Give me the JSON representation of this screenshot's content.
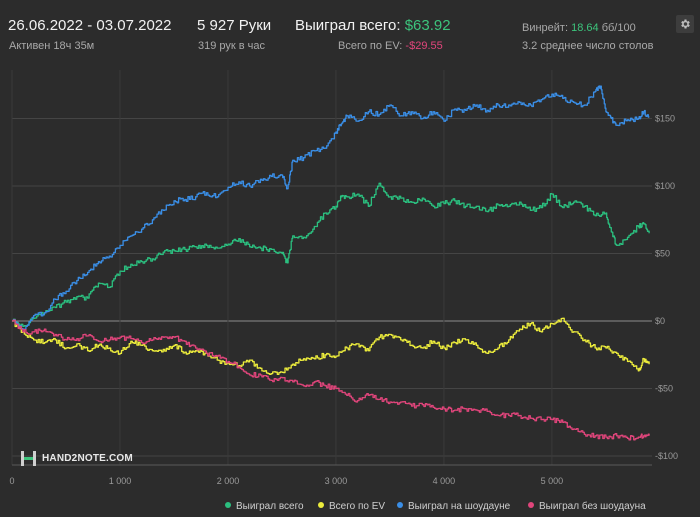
{
  "header": {
    "date_range": "26.06.2022 - 03.07.2022",
    "active": "Активен 18ч 35м",
    "hands": "5 927 Руки",
    "hands_per_hour": "319 рук в час",
    "won_label": "Выиграл всего:",
    "won_value": "$63.92",
    "ev_label": "Всего по EV:",
    "ev_value": "-$29.55",
    "winrate_label": "Винрейт:",
    "winrate_value": "18.64",
    "winrate_unit": "бб/100",
    "avg_tables": "3.2 среднее число столов"
  },
  "logo": {
    "text": "HAND2NOTE.COM"
  },
  "colors": {
    "background": "#2c2c2c",
    "won_total": "#2bbf7f",
    "ev_total": "#ecec3c",
    "showdown": "#3a8ee6",
    "non_showdown": "#e0457b"
  },
  "chart_data": {
    "type": "line",
    "xlim": [
      0,
      5927
    ],
    "ylim": [
      -100,
      175
    ],
    "x_ticks": [
      {
        "value": 0,
        "label": "0"
      },
      {
        "value": 1000,
        "label": "1 000"
      },
      {
        "value": 2000,
        "label": "2 000"
      },
      {
        "value": 3000,
        "label": "3 000"
      },
      {
        "value": 4000,
        "label": "4 000"
      },
      {
        "value": 5000,
        "label": "5 000"
      }
    ],
    "y_ticks": [
      {
        "value": 150,
        "label": "$150"
      },
      {
        "value": 100,
        "label": "$100"
      },
      {
        "value": 50,
        "label": "$50"
      },
      {
        "value": 0,
        "label": "$0"
      },
      {
        "value": -50,
        "label": "-$50"
      },
      {
        "value": -100,
        "label": "-$100"
      }
    ],
    "grid": true,
    "legend_position": "bottom",
    "series": [
      {
        "name": "Выиграл всего",
        "color": "#2bbf7f",
        "x": [
          0,
          100,
          200,
          300,
          400,
          500,
          600,
          700,
          800,
          900,
          1000,
          1100,
          1200,
          1300,
          1400,
          1500,
          1600,
          1700,
          1800,
          1900,
          2000,
          2100,
          2200,
          2300,
          2400,
          2500,
          2550,
          2600,
          2700,
          2800,
          2900,
          3000,
          3050,
          3100,
          3200,
          3300,
          3400,
          3500,
          3600,
          3700,
          3800,
          3900,
          4000,
          4100,
          4200,
          4300,
          4400,
          4500,
          4600,
          4700,
          4800,
          4900,
          5000,
          5100,
          5200,
          5300,
          5400,
          5500,
          5550,
          5600,
          5700,
          5800,
          5850,
          5900
        ],
        "y": [
          0,
          -4,
          2,
          6,
          10,
          14,
          18,
          17,
          28,
          25,
          37,
          42,
          44,
          46,
          51,
          52,
          53,
          55,
          56,
          54,
          57,
          61,
          55,
          54,
          53,
          50,
          43,
          63,
          62,
          70,
          80,
          85,
          92,
          92,
          94,
          85,
          102,
          92,
          91,
          88,
          91,
          85,
          87,
          89,
          85,
          85,
          81,
          86,
          85,
          88,
          82,
          84,
          94,
          84,
          88,
          85,
          78,
          80,
          66,
          56,
          62,
          70,
          72,
          65
        ]
      },
      {
        "name": "Всего по EV",
        "color": "#ecec3c",
        "x": [
          0,
          100,
          200,
          300,
          400,
          500,
          600,
          700,
          800,
          900,
          1000,
          1100,
          1200,
          1300,
          1400,
          1500,
          1600,
          1700,
          1800,
          1900,
          2000,
          2100,
          2200,
          2300,
          2400,
          2500,
          2600,
          2700,
          2800,
          2900,
          3000,
          3100,
          3200,
          3300,
          3400,
          3500,
          3600,
          3700,
          3800,
          3900,
          4000,
          4100,
          4200,
          4300,
          4400,
          4500,
          4600,
          4700,
          4800,
          4900,
          5000,
          5100,
          5200,
          5300,
          5400,
          5500,
          5600,
          5700,
          5800,
          5850,
          5900
        ],
        "y": [
          0,
          -8,
          -14,
          -16,
          -14,
          -20,
          -17,
          -22,
          -18,
          -20,
          -24,
          -15,
          -18,
          -22,
          -21,
          -18,
          -23,
          -22,
          -24,
          -29,
          -31,
          -33,
          -29,
          -35,
          -39,
          -38,
          -32,
          -28,
          -28,
          -25,
          -26,
          -20,
          -17,
          -22,
          -12,
          -10,
          -14,
          -18,
          -20,
          -15,
          -20,
          -16,
          -14,
          -18,
          -24,
          -20,
          -14,
          -6,
          -2,
          -8,
          -2,
          2,
          -8,
          -14,
          -20,
          -20,
          -24,
          -30,
          -37,
          -28,
          -32
        ]
      },
      {
        "name": "Выиграл на шоудауне",
        "color": "#3a8ee6",
        "x": [
          0,
          100,
          200,
          300,
          400,
          500,
          600,
          700,
          800,
          900,
          1000,
          1100,
          1200,
          1300,
          1400,
          1500,
          1600,
          1700,
          1800,
          1900,
          2000,
          2100,
          2200,
          2300,
          2400,
          2500,
          2550,
          2600,
          2700,
          2800,
          2900,
          3000,
          3050,
          3100,
          3200,
          3300,
          3400,
          3500,
          3600,
          3700,
          3800,
          3900,
          4000,
          4100,
          4200,
          4300,
          4400,
          4500,
          4600,
          4700,
          4800,
          4900,
          5000,
          5100,
          5200,
          5300,
          5400,
          5450,
          5500,
          5550,
          5600,
          5700,
          5800,
          5850,
          5900
        ],
        "y": [
          0,
          -6,
          4,
          6,
          16,
          22,
          30,
          36,
          44,
          48,
          56,
          63,
          68,
          75,
          82,
          89,
          90,
          92,
          95,
          92,
          99,
          103,
          100,
          105,
          107,
          108,
          98,
          119,
          121,
          126,
          128,
          140,
          146,
          152,
          148,
          155,
          153,
          160,
          152,
          155,
          150,
          155,
          148,
          157,
          156,
          160,
          156,
          160,
          160,
          162,
          160,
          164,
          168,
          165,
          162,
          160,
          170,
          174,
          155,
          150,
          145,
          149,
          150,
          155,
          151
        ]
      },
      {
        "name": "Выиграл без шоудауна",
        "color": "#e0457b",
        "x": [
          0,
          100,
          200,
          300,
          400,
          500,
          600,
          700,
          800,
          900,
          1000,
          1100,
          1200,
          1300,
          1400,
          1500,
          1600,
          1700,
          1800,
          1900,
          2000,
          2100,
          2200,
          2300,
          2400,
          2500,
          2600,
          2700,
          2800,
          2900,
          3000,
          3100,
          3200,
          3300,
          3400,
          3500,
          3600,
          3700,
          3800,
          3900,
          4000,
          4100,
          4200,
          4300,
          4400,
          4500,
          4600,
          4700,
          4800,
          4900,
          5000,
          5100,
          5200,
          5300,
          5400,
          5500,
          5600,
          5700,
          5800,
          5850,
          5900
        ],
        "y": [
          0,
          -8,
          -8,
          -6,
          -10,
          -14,
          -13,
          -11,
          -15,
          -14,
          -12,
          -13,
          -16,
          -14,
          -12,
          -12,
          -15,
          -20,
          -24,
          -26,
          -30,
          -34,
          -40,
          -40,
          -44,
          -42,
          -45,
          -48,
          -45,
          -48,
          -50,
          -55,
          -59,
          -55,
          -58,
          -60,
          -60,
          -63,
          -62,
          -64,
          -65,
          -66,
          -65,
          -66,
          -67,
          -70,
          -70,
          -70,
          -72,
          -73,
          -73,
          -75,
          -80,
          -84,
          -85,
          -86,
          -85,
          -87,
          -86,
          -85,
          -85
        ]
      }
    ]
  }
}
